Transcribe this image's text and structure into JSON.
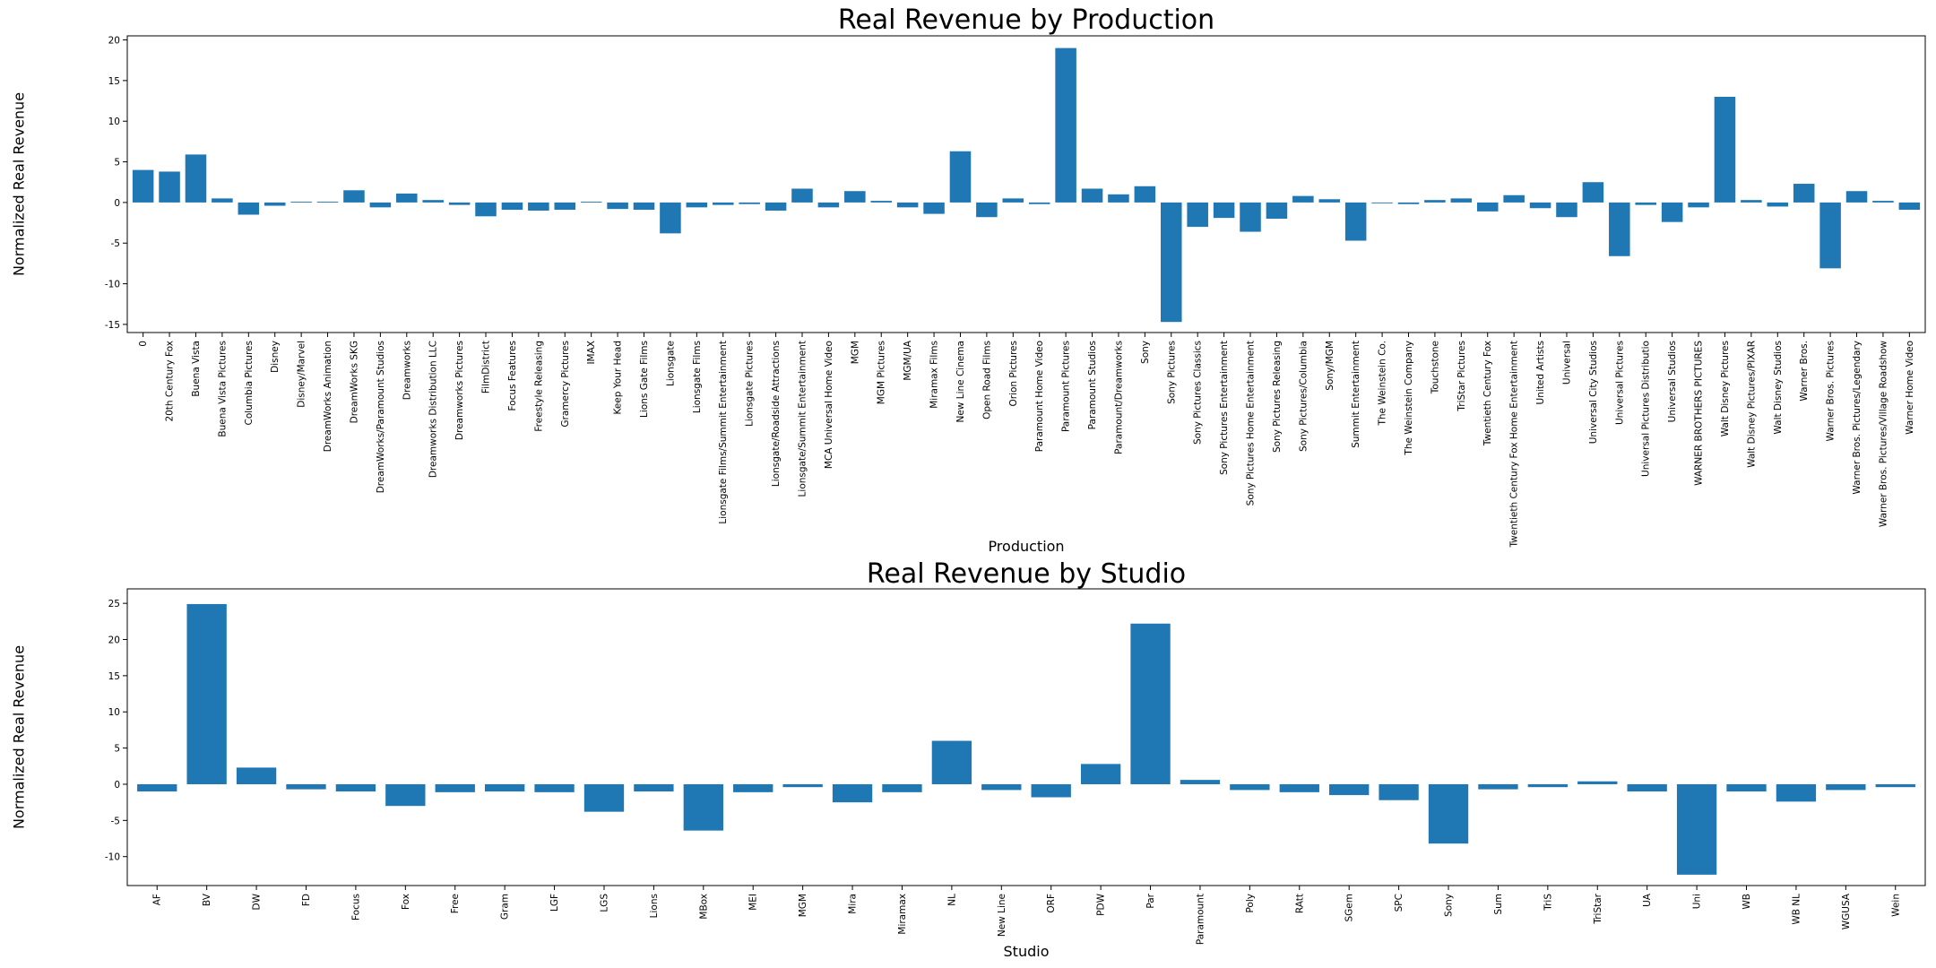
{
  "chart_data": [
    {
      "type": "bar",
      "title": "Real Revenue by Production",
      "xlabel": "Production",
      "ylabel": "Normalized Real Revenue",
      "ylim": [
        -16,
        20.5
      ],
      "yticks": [
        -15,
        -10,
        -5,
        0,
        5,
        10,
        15,
        20
      ],
      "grid": false,
      "color": "#1f77b4",
      "categories": [
        "0",
        "20th Century Fox",
        "Buena Vista",
        "Buena Vista Pictures",
        "Columbia Pictures",
        "Disney",
        "Disney/Marvel",
        "DreamWorks Animation",
        "DreamWorks SKG",
        "DreamWorks/Paramount Studios",
        "Dreamworks",
        "Dreamworks Distribution LLC",
        "Dreamworks Pictures",
        "FilmDistrict",
        "Focus Features",
        "Freestyle Releasing",
        "Gramercy Pictures",
        "IMAX",
        "Keep Your Head",
        "Lions Gate Films",
        "Lionsgate",
        "Lionsgate Films",
        "Lionsgate Films/Summit Entertainment",
        "Lionsgate Pictures",
        "Lionsgate/Roadside Attractions",
        "Lionsgate/Summit Entertainment",
        "MCA Universal Home Video",
        "MGM",
        "MGM Pictures",
        "MGM/UA",
        "Miramax Films",
        "New Line Cinema",
        "Open Road Films",
        "Orion Pictures",
        "Paramount Home Video",
        "Paramount Pictures",
        "Paramount Studios",
        "Paramount/Dreamworks",
        "Sony",
        "Sony Pictures",
        "Sony Pictures Classics",
        "Sony Pictures Entertainment",
        "Sony Pictures Home Entertainment",
        "Sony Pictures Releasing",
        "Sony Pictures/Columbia",
        "Sony/MGM",
        "Summit Entertainment",
        "The Weinstein Co.",
        "The Weinstein Company",
        "Touchstone",
        "TriStar Pictures",
        "Twentieth Century Fox",
        "Twentieth Century Fox Home Entertainment",
        "United Artists",
        "Universal",
        "Universal City Studios",
        "Universal Pictures",
        "Universal Pictures Distributio",
        "Universal Studios",
        "WARNER BROTHERS PICTURES",
        "Walt Disney Pictures",
        "Walt Disney Pictures/PIXAR",
        "Walt Disney Studios",
        "Warner Bros.",
        "Warner Bros. Pictures",
        "Warner Bros. Pictures/Legendary",
        "Warner Bros. Pictures/Village Roadshow",
        "Warner Home Video"
      ],
      "values": [
        4.0,
        3.8,
        5.9,
        0.5,
        -1.5,
        -0.4,
        0.1,
        0.1,
        1.5,
        -0.6,
        1.1,
        0.3,
        -0.3,
        -1.7,
        -0.9,
        -1.0,
        -0.9,
        0.1,
        -0.8,
        -0.9,
        -3.8,
        -0.6,
        -0.3,
        -0.2,
        -1.0,
        1.7,
        -0.6,
        1.4,
        0.2,
        -0.6,
        -1.4,
        6.3,
        -1.8,
        0.5,
        -0.2,
        19.0,
        1.7,
        1.0,
        2.0,
        -14.7,
        -3.0,
        -1.9,
        -3.6,
        -2.0,
        0.8,
        0.4,
        -4.7,
        -0.1,
        -0.2,
        0.3,
        0.5,
        -1.1,
        0.9,
        -0.7,
        -1.8,
        2.5,
        -6.6,
        -0.3,
        -2.4,
        -0.6,
        13.0,
        0.3,
        -0.5,
        2.3,
        -8.1,
        1.4,
        0.2,
        -0.9
      ]
    },
    {
      "type": "bar",
      "title": "Real Revenue by Studio",
      "xlabel": "Studio",
      "ylabel": "Normalized Real Revenue",
      "ylim": [
        -14,
        27
      ],
      "yticks": [
        -10,
        -5,
        0,
        5,
        10,
        15,
        20,
        25
      ],
      "grid": false,
      "color": "#1f77b4",
      "categories": [
        "AF",
        "BV",
        "DW",
        "FD",
        "Focus",
        "Fox",
        "Free",
        "Gram",
        "LGF",
        "LGS",
        "Lions",
        "MBox",
        "MEI",
        "MGM",
        "Mira",
        "Miramax",
        "NL",
        "New Line",
        "ORF",
        "PDW",
        "Par",
        "Paramount",
        "Poly",
        "RAtt",
        "SGem",
        "SPC",
        "Sony",
        "Sum",
        "TriS",
        "TriStar",
        "UA",
        "Uni",
        "WB",
        "WB NL",
        "WGUSA",
        "Wein"
      ],
      "values": [
        -1.0,
        24.9,
        2.3,
        -0.7,
        -1.0,
        -3.0,
        -1.1,
        -1.0,
        -1.1,
        -3.8,
        -1.0,
        -6.4,
        -1.1,
        -0.4,
        -2.5,
        -1.1,
        6.0,
        -0.8,
        -1.8,
        2.8,
        22.2,
        0.6,
        -0.8,
        -1.1,
        -1.5,
        -2.2,
        -8.2,
        -0.7,
        -0.4,
        0.4,
        -1.0,
        -12.5,
        -1.0,
        -2.4,
        -0.8,
        -0.4
      ]
    }
  ]
}
